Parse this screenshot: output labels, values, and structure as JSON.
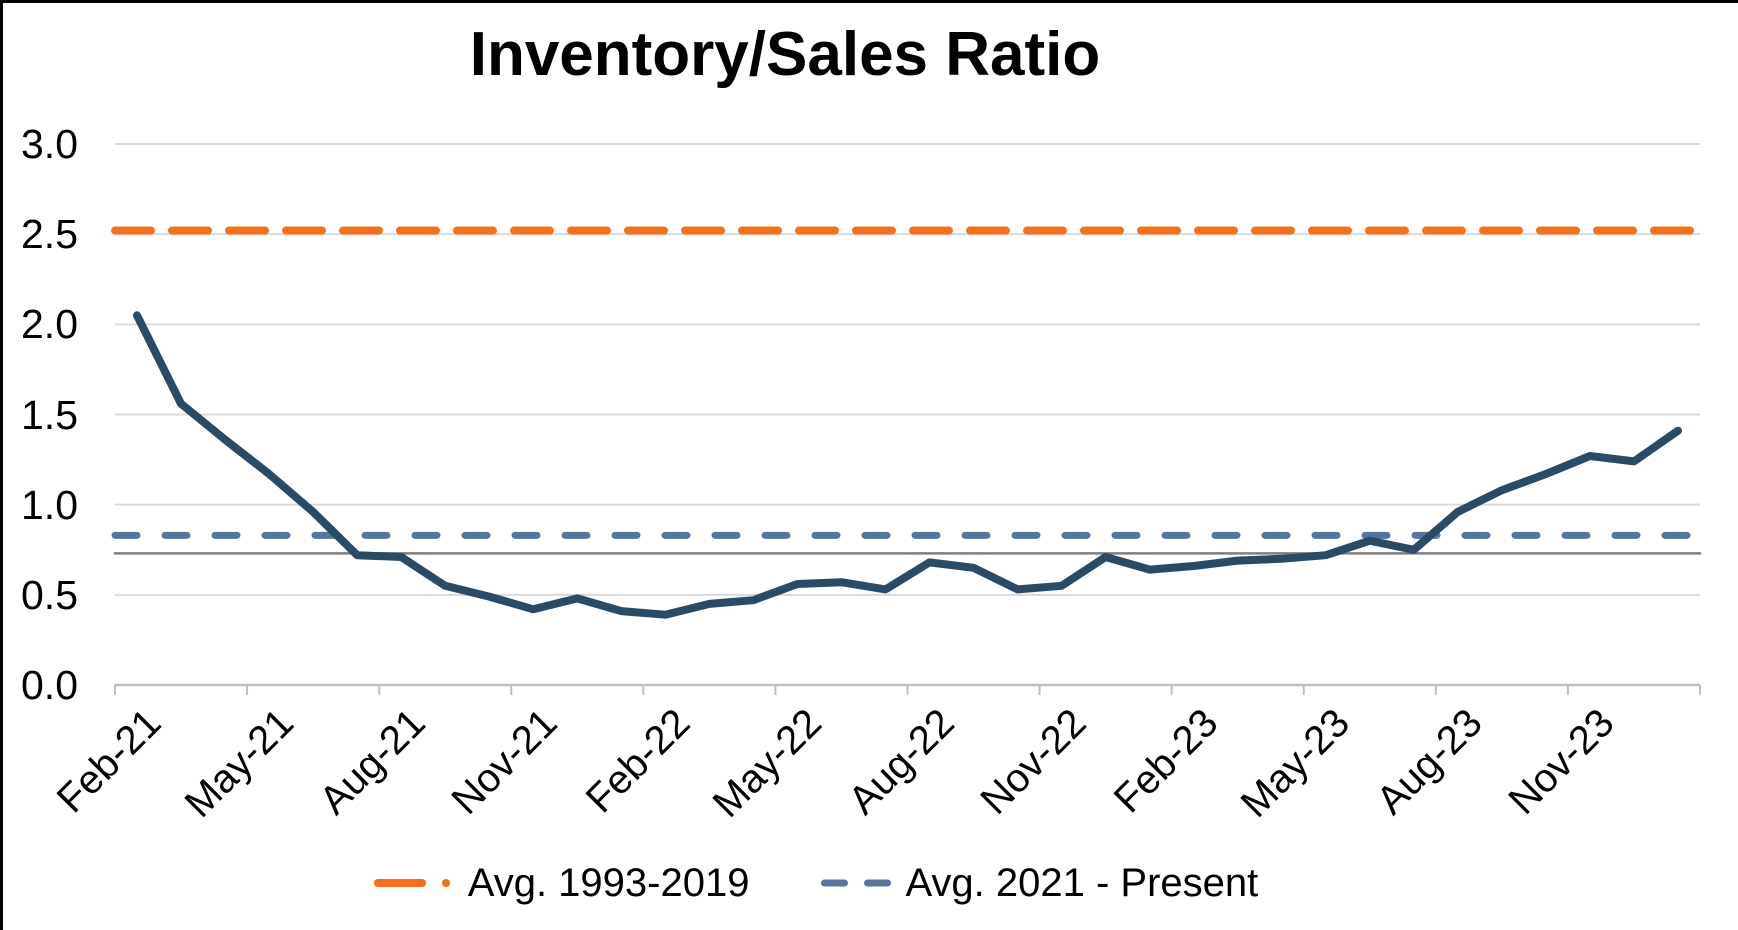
{
  "title": "Inventory/Sales Ratio",
  "chart_data": {
    "type": "line",
    "title": "Inventory/Sales Ratio",
    "x": [
      "Feb-21",
      "Mar-21",
      "Apr-21",
      "May-21",
      "Jun-21",
      "Jul-21",
      "Aug-21",
      "Sep-21",
      "Oct-21",
      "Nov-21",
      "Dec-21",
      "Jan-22",
      "Feb-22",
      "Mar-22",
      "Apr-22",
      "May-22",
      "Jun-22",
      "Jul-22",
      "Aug-22",
      "Sep-22",
      "Oct-22",
      "Nov-22",
      "Dec-22",
      "Jan-23",
      "Feb-23",
      "Mar-23",
      "Apr-23",
      "May-23",
      "Jun-23",
      "Jul-23",
      "Aug-23",
      "Sep-23",
      "Oct-23",
      "Nov-23",
      "Dec-23",
      "Jan-24"
    ],
    "series": [
      {
        "name": "Inventory/Sales Ratio",
        "color": "#2B4A66",
        "style": "solid",
        "values": [
          2.05,
          1.56,
          1.36,
          1.17,
          0.96,
          0.72,
          0.71,
          0.55,
          0.49,
          0.42,
          0.48,
          0.41,
          0.39,
          0.45,
          0.47,
          0.56,
          0.57,
          0.53,
          0.68,
          0.65,
          0.53,
          0.55,
          0.71,
          0.64,
          0.66,
          0.69,
          0.7,
          0.72,
          0.8,
          0.75,
          0.96,
          1.08,
          1.17,
          1.27,
          1.24,
          1.41
        ]
      }
    ],
    "reference_lines": [
      {
        "name": "Avg. 1993-2019",
        "value": 2.52,
        "color": "#F4701D",
        "style": "long-dash"
      },
      {
        "name": "Avg. 2021 - Present",
        "value": 0.83,
        "color": "#54759E",
        "style": "short-dash"
      },
      {
        "name": "gray-reference",
        "value": 0.73,
        "color": "#7F7F7F",
        "style": "solid"
      }
    ],
    "y_ticks": [
      "0.0",
      "0.5",
      "1.0",
      "1.5",
      "2.0",
      "2.5",
      "3.0"
    ],
    "y_tick_values": [
      0,
      0.5,
      1.0,
      1.5,
      2.0,
      2.5,
      3.0
    ],
    "ylim": [
      0,
      3.0
    ],
    "x_tick_labels": [
      "Feb-21",
      "May-21",
      "Aug-21",
      "Nov-21",
      "Feb-22",
      "May-22",
      "Aug-22",
      "Nov-22",
      "Feb-23",
      "May-23",
      "Aug-23",
      "Nov-23"
    ],
    "x_tick_every_months": 3,
    "grid": true,
    "legend": {
      "position": "bottom",
      "entries": [
        {
          "label": "Avg. 1993-2019",
          "color": "#F4701D",
          "pattern": "dash-dot"
        },
        {
          "label": "Avg. 2021 - Present",
          "color": "#54759E",
          "pattern": "dash-dash"
        }
      ]
    }
  },
  "colors": {
    "background": "#FFFFFF",
    "gridline": "#D9D9D9",
    "axis": "#BFBFBF",
    "text": "#000000",
    "frame_border": "#000000"
  }
}
